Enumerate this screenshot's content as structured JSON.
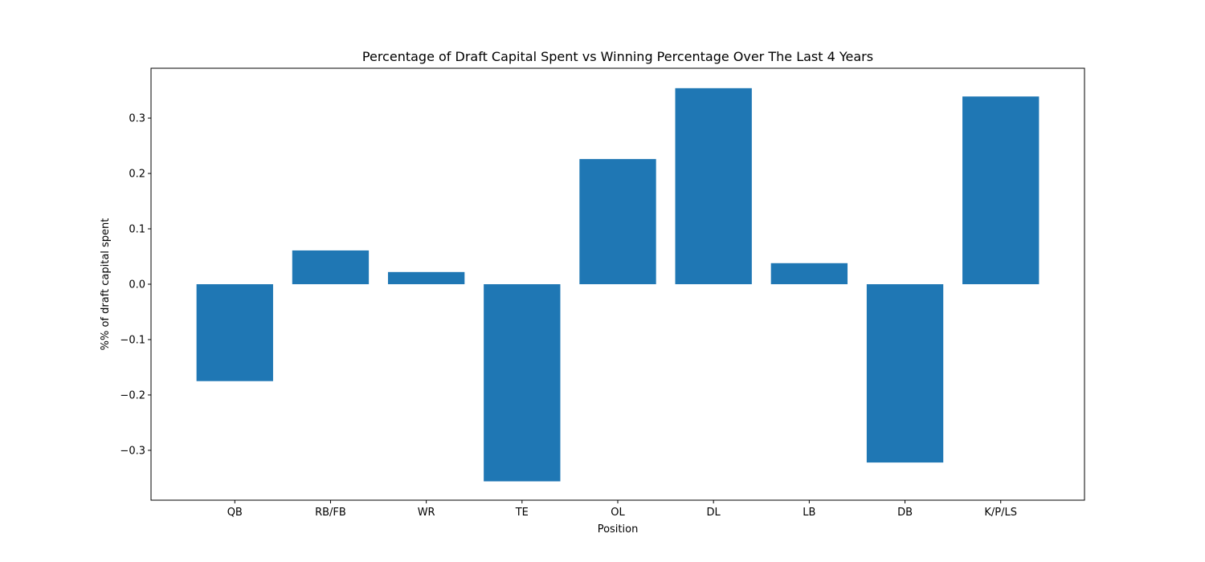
{
  "chart_data": {
    "type": "bar",
    "title": "Percentage of Draft Capital Spent vs Winning Percentage Over The Last 4 Years",
    "xlabel": "Position",
    "ylabel": "%% of draft capital spent",
    "categories": [
      "QB",
      "RB/FB",
      "WR",
      "TE",
      "OL",
      "DL",
      "LB",
      "DB",
      "K/P/LS"
    ],
    "values": [
      -0.175,
      0.061,
      0.022,
      -0.356,
      0.226,
      0.354,
      0.038,
      -0.322,
      0.339
    ],
    "ylim": [
      -0.39,
      0.39
    ],
    "yticks": [
      -0.3,
      -0.2,
      -0.1,
      0.0,
      0.1,
      0.2,
      0.3
    ],
    "ytick_labels": [
      "−0.3",
      "−0.2",
      "−0.1",
      "0.0",
      "0.1",
      "0.2",
      "0.3"
    ],
    "grid": false,
    "bar_color": "#1f77b4"
  }
}
